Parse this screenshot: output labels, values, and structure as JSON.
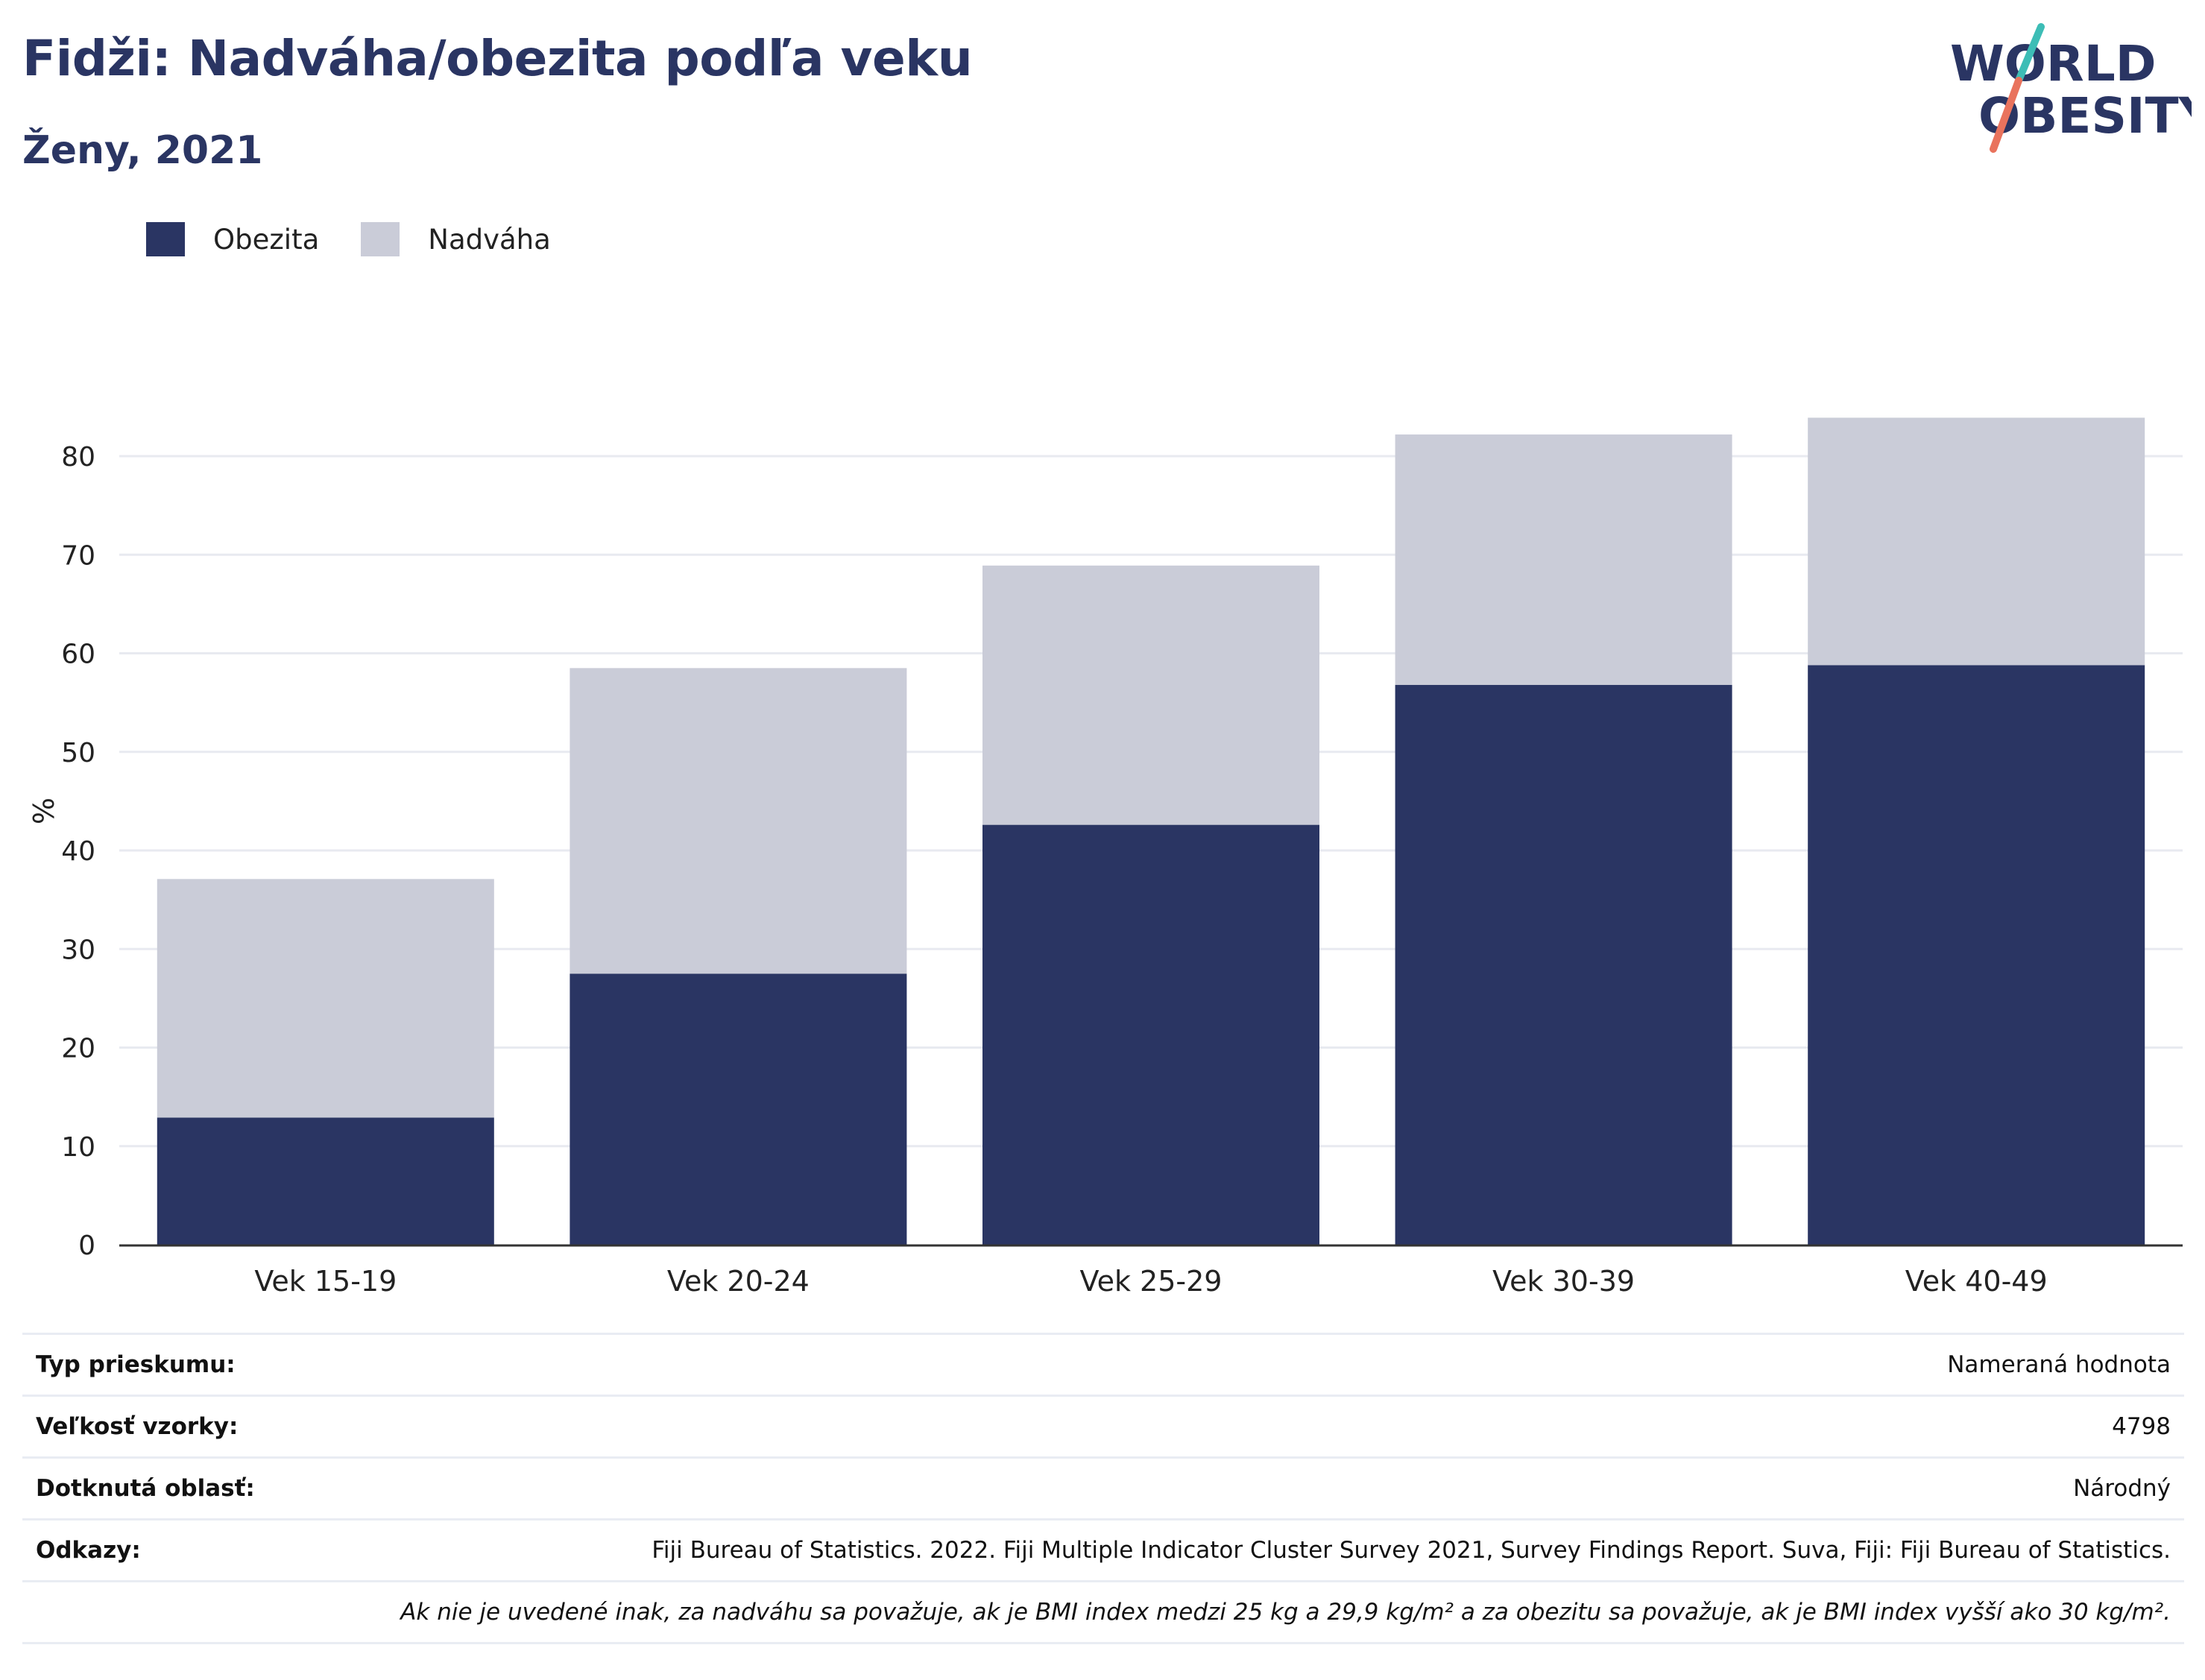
{
  "header": {
    "title": "Fidži: Nadváha/obezita podľa veku",
    "subtitle": "Ženy, 2021"
  },
  "logo": {
    "line1": "WORLD",
    "line2": "OBESITY",
    "colors": {
      "text": "#2a3563",
      "slash_teal": "#3dbdb6",
      "slash_coral": "#e9735d"
    }
  },
  "colors": {
    "obesity": "#2a3563",
    "overweight": "#caccd8",
    "grid": "#e8eaf0",
    "axis": "#333333"
  },
  "chart_data": {
    "type": "bar",
    "stacked": true,
    "categories": [
      "Vek 15-19",
      "Vek 20-24",
      "Vek 25-29",
      "Vek 30-39",
      "Vek 40-49"
    ],
    "series": [
      {
        "name": "Obezita",
        "color": "#2a3563",
        "values": [
          12.9,
          27.5,
          42.6,
          56.8,
          58.8
        ]
      },
      {
        "name": "Nadváha",
        "color": "#caccd8",
        "values": [
          24.2,
          31.0,
          26.3,
          25.4,
          25.1
        ]
      }
    ],
    "ylabel": "%",
    "ylim": [
      0,
      85
    ],
    "yticks": [
      0,
      10,
      20,
      30,
      40,
      50,
      60,
      70,
      80
    ],
    "grid": true,
    "legend_position": "top-left"
  },
  "table": {
    "rows": [
      {
        "key": "Typ prieskumu:",
        "value": "Nameraná hodnota"
      },
      {
        "key": "Veľkosť vzorky:",
        "value": "4798"
      },
      {
        "key": "Dotknutá oblasť:",
        "value": "Národný"
      },
      {
        "key": "Odkazy:",
        "value": "Fiji Bureau of Statistics. 2022. Fiji Multiple Indicator Cluster Survey 2021, Survey Findings Report. Suva, Fiji: Fiji Bureau of Statistics."
      }
    ],
    "note": "Ak nie je uvedené inak, za nadváhu sa považuje, ak je BMI index medzi 25 kg a 29,9 kg/m² a za obezitu sa považuje, ak je BMI index vyšší ako 30 kg/m²."
  }
}
